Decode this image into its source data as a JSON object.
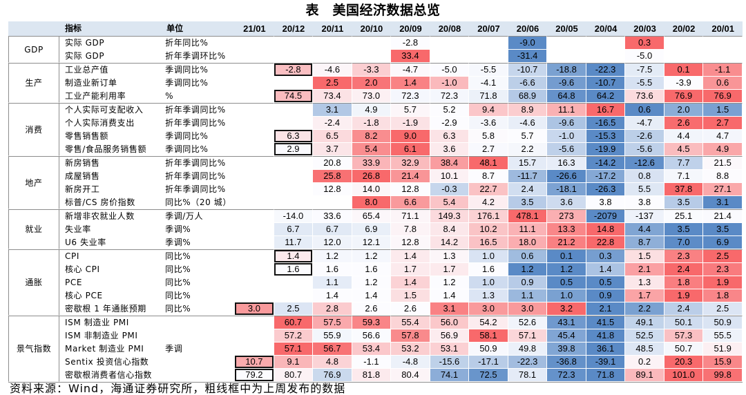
{
  "header": {
    "indicator": "指标",
    "unit": "单位"
  },
  "footer": "资料来源：Wind，海通证券研究所，粗线框中为上周发布的数据",
  "chart_data": {
    "type": "table",
    "title": "表　美国经济数据总览",
    "columns": [
      "21/01",
      "20/12",
      "20/11",
      "20/10",
      "20/09",
      "20/08",
      "20/07",
      "20/06",
      "20/05",
      "20/04",
      "20/03",
      "20/02",
      "20/01"
    ],
    "color_scale": {
      "low": "#5A8AC6",
      "mid": "#FCFCFF",
      "high": "#F8696B"
    },
    "groups": [
      {
        "name": "GDP",
        "rows": [
          {
            "indicator": "实际 GDP",
            "unit": "折年同比%",
            "boxed_col": null,
            "values": [
              null,
              null,
              null,
              null,
              "-2.8",
              null,
              null,
              "-9.0",
              null,
              null,
              "0.3",
              null,
              null
            ]
          },
          {
            "indicator": "实际 GDP",
            "unit": "折年季调环比%",
            "boxed_col": null,
            "values": [
              null,
              null,
              null,
              null,
              "33.4",
              null,
              null,
              "-31.4",
              null,
              null,
              "-5.0",
              null,
              null
            ]
          }
        ]
      },
      {
        "name": "生产",
        "rows": [
          {
            "indicator": "工业总产值",
            "unit": "季调同比%",
            "boxed_col": 1,
            "values": [
              null,
              "-2.8",
              "-4.6",
              "-3.3",
              "-4.7",
              "-5.0",
              "-5.5",
              "-10.7",
              "-18.8",
              "-22.3",
              "-7.5",
              "0.1",
              "-1.1"
            ]
          },
          {
            "indicator": "制造业新订单",
            "unit": "季调同比%",
            "boxed_col": null,
            "values": [
              null,
              null,
              "2.5",
              "2.0",
              "1.4",
              "-1.0",
              "-4.1",
              "-6.6",
              "-9.6",
              "-10.7",
              "-5.5",
              "-3.9",
              "0.6"
            ]
          },
          {
            "indicator": "工业产能利用率",
            "unit": "%",
            "boxed_col": 1,
            "values": [
              null,
              "74.5",
              "73.4",
              "73.0",
              "72.3",
              "72.3",
              "71.8",
              "68.9",
              "64.8",
              "64.2",
              "73.6",
              "76.9",
              "76.9"
            ]
          }
        ]
      },
      {
        "name": "消费",
        "rows": [
          {
            "indicator": "个人实际可支配收入",
            "unit": "折年季调同比%",
            "boxed_col": null,
            "values": [
              null,
              null,
              "3.1",
              "4.9",
              "5.7",
              "5.2",
              "9.4",
              "8.9",
              "11.1",
              "16.7",
              "0.6",
              "2.0",
              "1.5"
            ]
          },
          {
            "indicator": "个人实际消费支出",
            "unit": "折年季调同比%",
            "boxed_col": null,
            "values": [
              null,
              null,
              "-2.4",
              "-1.8",
              "-1.9",
              "-2.9",
              "-3.6",
              "-4.6",
              "-9.6",
              "-16.5",
              "-4.7",
              "2.6",
              "2.7"
            ]
          },
          {
            "indicator": "零售销售额",
            "unit": "季调同比%",
            "boxed_col": 1,
            "values": [
              null,
              "6.3",
              "6.5",
              "8.2",
              "9.0",
              "6.3",
              "5.8",
              "5.7",
              "-1.0",
              "-15.3",
              "-2.6",
              "4.4",
              "4.7"
            ]
          },
          {
            "indicator": "零售/食品服务销售额",
            "unit": "季调同比%",
            "boxed_col": 1,
            "values": [
              null,
              "2.9",
              "3.7",
              "5.4",
              "6.1",
              "3.6",
              "2.7",
              "2.2",
              "-5.6",
              "-19.9",
              "-5.6",
              "4.5",
              "4.9"
            ]
          }
        ]
      },
      {
        "name": "地产",
        "rows": [
          {
            "indicator": "新房销售",
            "unit": "折年季调同比%",
            "boxed_col": null,
            "values": [
              null,
              null,
              "20.8",
              "33.9",
              "32.9",
              "38.4",
              "48.1",
              "15.7",
              "16.3",
              "-14.2",
              "-12.6",
              "7.7",
              "21.5"
            ]
          },
          {
            "indicator": "成屋销售",
            "unit": "折年季调同比%",
            "boxed_col": null,
            "values": [
              null,
              null,
              "25.8",
              "26.8",
              "21.4",
              "10.1",
              "8.7",
              "-11.7",
              "-26.6",
              "-17.2",
              "0.8",
              "7.1",
              "8.8"
            ]
          },
          {
            "indicator": "新房开工",
            "unit": "折年季调同比%",
            "boxed_col": null,
            "values": [
              null,
              null,
              "12.8",
              "14.0",
              "12.8",
              "-0.3",
              "22.7",
              "2.4",
              "-18.1",
              "-26.3",
              "5.5",
              "37.8",
              "27.1"
            ]
          },
          {
            "indicator": "标普/CS 房价指数",
            "unit": "同比%（20 城）",
            "boxed_col": null,
            "values": [
              null,
              null,
              null,
              "8.0",
              "6.6",
              "5.4",
              "4.2",
              "3.5",
              "3.6",
              "3.8",
              "3.8",
              "3.5",
              "3.1"
            ]
          }
        ]
      },
      {
        "name": "就业",
        "rows": [
          {
            "indicator": "新增非农就业人数",
            "unit": "季调/万人",
            "boxed_col": null,
            "values": [
              null,
              "-14.0",
              "33.6",
              "65.4",
              "71.1",
              "149.3",
              "176.1",
              "478.1",
              "273",
              "-2079",
              "-137",
              "25.1",
              "21.4"
            ]
          },
          {
            "indicator": "失业率",
            "unit": "季调%",
            "boxed_col": null,
            "values": [
              null,
              "6.7",
              "6.7",
              "6.9",
              "7.8",
              "8.4",
              "10.2",
              "11.1",
              "13.3",
              "14.8",
              "4.4",
              "3.5",
              "3.5"
            ]
          },
          {
            "indicator": "U6 失业率",
            "unit": "季调%",
            "boxed_col": null,
            "values": [
              null,
              "11.7",
              "12.0",
              "12.1",
              "12.8",
              "14.2",
              "16.5",
              "18.0",
              "21.2",
              "22.8",
              "8.7",
              "7.0",
              "6.9"
            ]
          }
        ]
      },
      {
        "name": "通胀",
        "rows": [
          {
            "indicator": "CPI",
            "unit": "同比%",
            "boxed_col": 1,
            "values": [
              null,
              "1.4",
              "1.2",
              "1.2",
              "1.4",
              "1.3",
              "1.0",
              "0.6",
              "0.1",
              "0.3",
              "1.5",
              "2.3",
              "2.5"
            ]
          },
          {
            "indicator": "核心 CPI",
            "unit": "同比%",
            "boxed_col": 1,
            "values": [
              null,
              "1.6",
              "1.6",
              "1.6",
              "1.7",
              "1.7",
              "1.6",
              "1.2",
              "1.2",
              "1.4",
              "2.1",
              "2.4",
              "2.3"
            ]
          },
          {
            "indicator": "PCE",
            "unit": "同比%",
            "boxed_col": null,
            "values": [
              null,
              null,
              "1.1",
              "1.2",
              "1.4",
              "1.2",
              "1.0",
              "0.9",
              "0.5",
              "0.5",
              "1.3",
              "1.8",
              "1.9"
            ]
          },
          {
            "indicator": "核心 PCE",
            "unit": "同比%",
            "boxed_col": null,
            "values": [
              null,
              null,
              "1.4",
              "1.4",
              "1.5",
              "1.4",
              "1.3",
              "1.1",
              "1.0",
              "0.9",
              "1.7",
              "1.9",
              "1.8"
            ]
          },
          {
            "indicator": "密歇根 1 年通胀预期",
            "unit": "同比%",
            "boxed_col": 0,
            "values": [
              "3.0",
              "2.5",
              "2.8",
              "2.6",
              "2.6",
              "3.1",
              "3.0",
              "3.0",
              "3.2",
              "2.1",
              "2.2",
              "2.4",
              "2.5"
            ]
          }
        ]
      },
      {
        "name": "景气指数",
        "rows": [
          {
            "indicator": "ISM 制造业 PMI",
            "unit": "",
            "boxed_col": null,
            "values": [
              null,
              "60.7",
              "57.5",
              "59.3",
              "55.4",
              "56.0",
              "54.2",
              "52.6",
              "43.1",
              "41.5",
              "49.1",
              "50.1",
              "50.9"
            ]
          },
          {
            "indicator": "ISM 非制造业 PMI",
            "unit": "",
            "boxed_col": null,
            "values": [
              null,
              "57.2",
              "55.9",
              "56.6",
              "57.8",
              "56.9",
              "58.1",
              "57.1",
              "45.4",
              "41.8",
              "52.5",
              "57.3",
              "55.5"
            ]
          },
          {
            "indicator": "Market 制造业 PMI",
            "unit": "季调",
            "boxed_col": null,
            "values": [
              null,
              "57.1",
              "56.7",
              "53.4",
              "53.2",
              "53.1",
              "50.9",
              "49.8",
              "39.8",
              "36.1",
              "48.5",
              "50.7",
              "51.9"
            ]
          },
          {
            "indicator": "Sentix 投资信心指数",
            "unit": "",
            "boxed_col": 0,
            "values": [
              "10.7",
              "9.1",
              "4.8",
              "-1.1",
              "-4.8",
              "-15.6",
              "-17.1",
              "-22.3",
              "-36.8",
              "-39.1",
              "0.2",
              "20.3",
              "15.9"
            ]
          },
          {
            "indicator": "密歇根消费者信心指数",
            "unit": "",
            "boxed_col": 0,
            "values": [
              "79.2",
              "80.7",
              "76.9",
              "81.8",
              "80.4",
              "74.1",
              "72.5",
              "78.1",
              "72.3",
              "71.8",
              "89.1",
              "101.0",
              "99.8"
            ]
          }
        ]
      }
    ]
  }
}
